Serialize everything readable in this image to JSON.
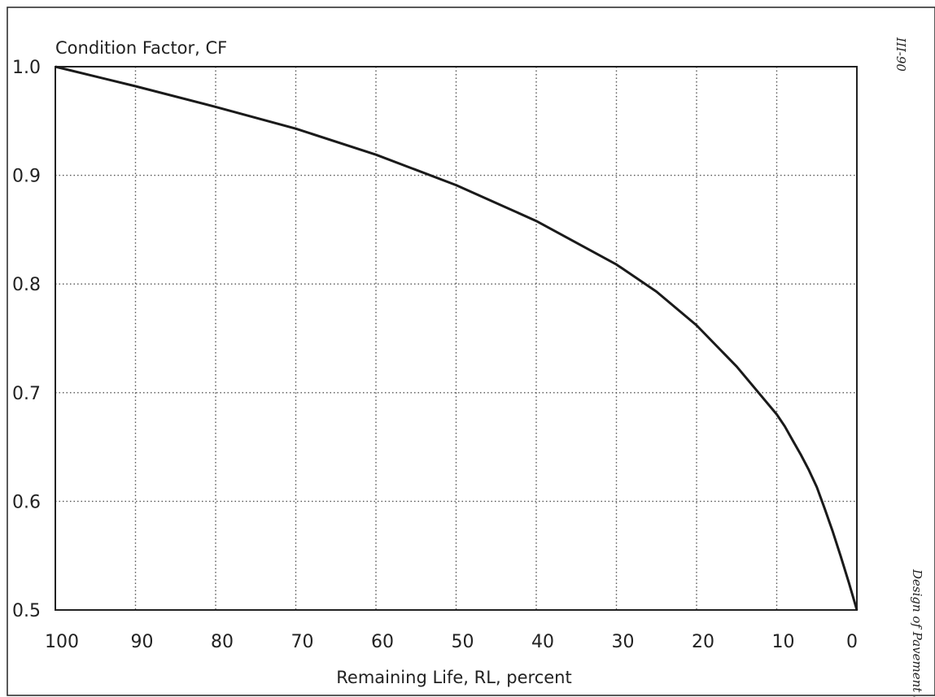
{
  "chart_data": {
    "type": "line",
    "title": "Condition Factor, CF",
    "xlabel": "Remaining Life, RL, percent",
    "ylabel": "Condition Factor, CF",
    "x_reversed": true,
    "xlim": [
      0,
      100
    ],
    "ylim": [
      0.5,
      1.0
    ],
    "x_ticks": [
      100,
      90,
      80,
      70,
      60,
      50,
      40,
      30,
      20,
      10,
      0
    ],
    "y_ticks": [
      1.0,
      0.9,
      0.8,
      0.7,
      0.6,
      0.5
    ],
    "x_tick_labels": [
      "100",
      "90",
      "80",
      "70",
      "60",
      "50",
      "40",
      "30",
      "20",
      "10",
      "0"
    ],
    "y_tick_labels": [
      "1.0",
      "0.9",
      "0.8",
      "0.7",
      "0.6",
      "0.5"
    ],
    "grid": true,
    "grid_style": "dotted",
    "series": [
      {
        "x": [
          100,
          90,
          80,
          70,
          60,
          50,
          40,
          30,
          25,
          20,
          15,
          10,
          9,
          8,
          7,
          6,
          5,
          4,
          3,
          2,
          1,
          0
        ],
        "y": [
          1.0,
          0.982,
          0.963,
          0.943,
          0.919,
          0.891,
          0.858,
          0.818,
          0.793,
          0.762,
          0.724,
          0.68,
          0.669,
          0.656,
          0.643,
          0.629,
          0.613,
          0.593,
          0.572,
          0.549,
          0.525,
          0.5
        ]
      }
    ],
    "line_color": "#1a1a1a",
    "grid_color": "#555555"
  },
  "side_text": {
    "page_number": "III-90",
    "running_title": "Design of Pavement St"
  }
}
